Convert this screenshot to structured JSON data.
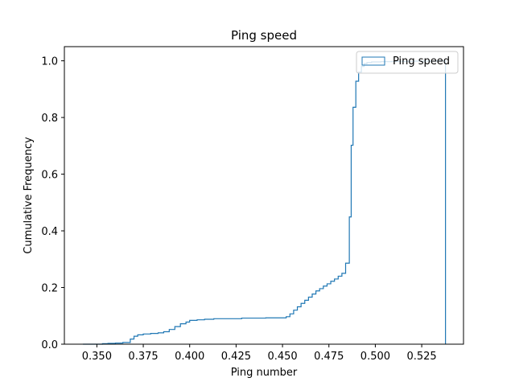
{
  "chart_data": {
    "type": "line",
    "subtype": "cumulative-step-histogram",
    "title": "Ping speed",
    "xlabel": "Ping number",
    "ylabel": "Cumulative Frequency",
    "xlim": [
      0.3325,
      0.5475
    ],
    "ylim": [
      0,
      1.05
    ],
    "xticks": [
      0.35,
      0.375,
      0.4,
      0.425,
      0.45,
      0.475,
      0.5,
      0.525
    ],
    "xtick_labels": [
      "0.350",
      "0.375",
      "0.400",
      "0.425",
      "0.450",
      "0.475",
      "0.500",
      "0.525"
    ],
    "yticks": [
      0,
      0.2,
      0.4,
      0.6,
      0.8,
      1.0
    ],
    "ytick_labels": [
      "0.0",
      "0.2",
      "0.4",
      "0.6",
      "0.8",
      "1.0"
    ],
    "grid": false,
    "legend_position": "top-right",
    "color": "#1f77b4",
    "series": [
      {
        "name": "Ping speed",
        "x": [
          0.3425,
          0.353,
          0.356,
          0.36,
          0.364,
          0.368,
          0.37,
          0.372,
          0.375,
          0.379,
          0.383,
          0.386,
          0.389,
          0.392,
          0.395,
          0.398,
          0.4,
          0.404,
          0.408,
          0.413,
          0.428,
          0.441,
          0.452,
          0.454,
          0.456,
          0.458,
          0.46,
          0.462,
          0.464,
          0.466,
          0.468,
          0.47,
          0.472,
          0.474,
          0.476,
          0.478,
          0.48,
          0.482,
          0.484,
          0.486,
          0.487,
          0.488,
          0.4895,
          0.491,
          0.4925,
          0.494,
          0.4955,
          0.498,
          0.503,
          0.509,
          0.515,
          0.521,
          0.527,
          0.533,
          0.5378
        ],
        "y": [
          0.0,
          0.002,
          0.003,
          0.004,
          0.006,
          0.018,
          0.028,
          0.033,
          0.036,
          0.038,
          0.04,
          0.044,
          0.052,
          0.062,
          0.072,
          0.078,
          0.084,
          0.086,
          0.088,
          0.09,
          0.092,
          0.093,
          0.097,
          0.107,
          0.12,
          0.132,
          0.144,
          0.155,
          0.166,
          0.177,
          0.188,
          0.196,
          0.205,
          0.213,
          0.222,
          0.23,
          0.24,
          0.25,
          0.286,
          0.449,
          0.702,
          0.836,
          0.928,
          0.96,
          0.98,
          0.99,
          0.994,
          0.996,
          0.997,
          0.998,
          0.998,
          0.999,
          0.999,
          1.0,
          1.0
        ]
      }
    ]
  }
}
